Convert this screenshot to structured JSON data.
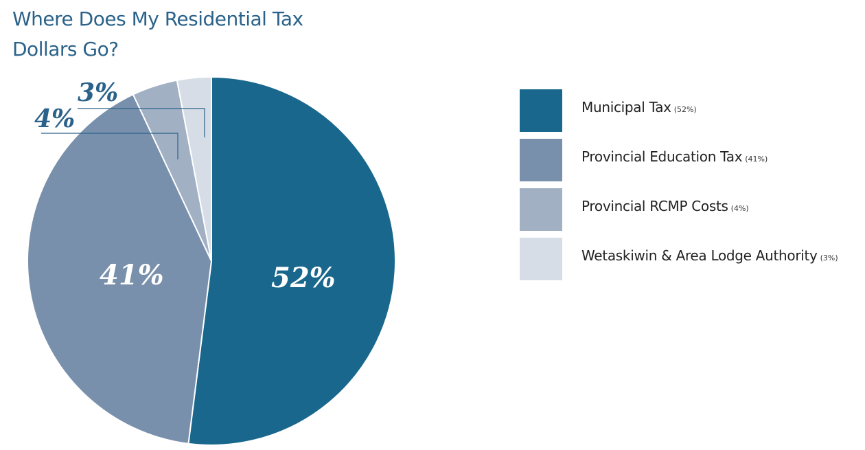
{
  "chart_data": {
    "type": "pie",
    "title": "Where Does My Residential Tax Dollars Go?",
    "categories": [
      "Municipal Tax",
      "Provincial Education Tax",
      "Provincial RCMP Costs",
      "Wetaskiwin & Area Lodge Authority"
    ],
    "values": [
      52,
      41,
      4,
      3
    ],
    "slice_labels": [
      "52%",
      "41%",
      "4%",
      "3%"
    ],
    "legend_pct": [
      "(52%)",
      "(41%)",
      "(4%)",
      "(3%)"
    ],
    "colors": [
      "#19678d",
      "#7990ac",
      "#a1b0c3",
      "#d7dde6"
    ],
    "legend_position": "right"
  }
}
